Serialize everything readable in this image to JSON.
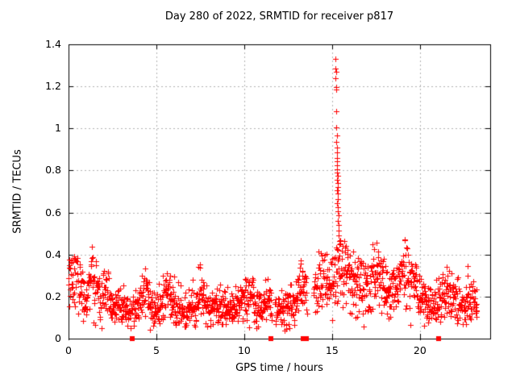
{
  "chart_data": {
    "type": "scatter",
    "title": "Day 280 of 2022, SRMTID for receiver p817",
    "xlabel": "GPS time / hours",
    "ylabel": "SRMTID / TECUs",
    "xlim": [
      0,
      24
    ],
    "ylim": [
      0,
      1.4
    ],
    "xticks": {
      "values": [
        0,
        5,
        10,
        15,
        20
      ],
      "labels": [
        "0",
        "5",
        "10",
        "15",
        "20"
      ]
    },
    "yticks": {
      "values": [
        0,
        0.2,
        0.4,
        0.6,
        0.8,
        1.0,
        1.2,
        1.4
      ],
      "labels": [
        "0",
        "0.2",
        "0.4",
        "0.6",
        "0.8",
        "1",
        "1.2",
        "1.4"
      ]
    },
    "grid": true,
    "grid_style": "dashed",
    "legend": false,
    "marker": "plus",
    "colors": {
      "series": "#ff0000",
      "grid": "#b4b4b4",
      "border": "#000000",
      "background": "#ffffff"
    },
    "main_series": {
      "name": "SRMTID",
      "description": "Dense scatter of ~1600 samples, values mostly 0.05-0.45 TECUs oscillating with ~1 h quasi-period",
      "t_range": [
        0,
        23.25
      ],
      "point_count": 1600,
      "seed": 280,
      "envelope_keyframes": [
        [
          0.0,
          0.24,
          0.36
        ],
        [
          0.4,
          0.26,
          0.4
        ],
        [
          0.9,
          0.16,
          0.3
        ],
        [
          1.3,
          0.27,
          0.44
        ],
        [
          1.8,
          0.15,
          0.32
        ],
        [
          2.1,
          0.2,
          0.38
        ],
        [
          2.5,
          0.11,
          0.22
        ],
        [
          2.9,
          0.16,
          0.3
        ],
        [
          3.3,
          0.11,
          0.22
        ],
        [
          3.8,
          0.12,
          0.26
        ],
        [
          4.4,
          0.19,
          0.38
        ],
        [
          4.8,
          0.11,
          0.22
        ],
        [
          5.2,
          0.13,
          0.28
        ],
        [
          5.6,
          0.2,
          0.46
        ],
        [
          6.0,
          0.14,
          0.3
        ],
        [
          6.5,
          0.11,
          0.24
        ],
        [
          7.0,
          0.14,
          0.3
        ],
        [
          7.5,
          0.17,
          0.36
        ],
        [
          8.0,
          0.12,
          0.23
        ],
        [
          8.5,
          0.14,
          0.27
        ],
        [
          9.0,
          0.12,
          0.25
        ],
        [
          9.5,
          0.14,
          0.28
        ],
        [
          10.1,
          0.17,
          0.34
        ],
        [
          10.5,
          0.17,
          0.3
        ],
        [
          10.9,
          0.12,
          0.24
        ],
        [
          11.3,
          0.15,
          0.3
        ],
        [
          11.8,
          0.12,
          0.24
        ],
        [
          12.2,
          0.12,
          0.24
        ],
        [
          12.6,
          0.15,
          0.3
        ],
        [
          13.0,
          0.19,
          0.34
        ],
        [
          13.35,
          0.23,
          0.37
        ],
        [
          13.8,
          0.18,
          0.28
        ],
        [
          14.1,
          0.24,
          0.45
        ],
        [
          14.45,
          0.26,
          0.52
        ],
        [
          14.75,
          0.21,
          0.38
        ],
        [
          15.05,
          0.23,
          0.4
        ],
        [
          15.4,
          0.3,
          0.5
        ],
        [
          15.75,
          0.27,
          0.47
        ],
        [
          16.05,
          0.24,
          0.4
        ],
        [
          16.35,
          0.27,
          0.48
        ],
        [
          16.7,
          0.21,
          0.38
        ],
        [
          17.1,
          0.24,
          0.42
        ],
        [
          17.55,
          0.28,
          0.55
        ],
        [
          17.95,
          0.21,
          0.38
        ],
        [
          18.4,
          0.19,
          0.33
        ],
        [
          18.8,
          0.22,
          0.4
        ],
        [
          19.15,
          0.27,
          0.5
        ],
        [
          19.5,
          0.24,
          0.44
        ],
        [
          19.9,
          0.18,
          0.33
        ],
        [
          20.3,
          0.15,
          0.27
        ],
        [
          20.7,
          0.13,
          0.25
        ],
        [
          21.1,
          0.15,
          0.3
        ],
        [
          21.55,
          0.21,
          0.44
        ],
        [
          21.9,
          0.16,
          0.3
        ],
        [
          22.3,
          0.14,
          0.3
        ],
        [
          22.65,
          0.15,
          0.38
        ],
        [
          23.0,
          0.17,
          0.3
        ],
        [
          23.25,
          0.15,
          0.26
        ]
      ],
      "gaps": [
        [
          11.55,
          11.73
        ],
        [
          13.57,
          13.95
        ]
      ]
    },
    "spike": {
      "description": "Large TID event near 15.2-15.45 h peaking at ~1.33 TECUs",
      "points": [
        [
          15.19,
          1.33
        ],
        [
          15.21,
          1.285
        ],
        [
          15.22,
          1.27
        ],
        [
          15.2,
          1.24
        ],
        [
          15.22,
          1.195
        ],
        [
          15.25,
          1.185
        ],
        [
          15.23,
          1.08
        ],
        [
          15.24,
          1.005
        ],
        [
          15.26,
          0.965
        ],
        [
          15.25,
          0.935
        ],
        [
          15.28,
          0.91
        ],
        [
          15.27,
          0.885
        ],
        [
          15.29,
          0.86
        ],
        [
          15.28,
          0.845
        ],
        [
          15.3,
          0.825
        ],
        [
          15.29,
          0.805
        ],
        [
          15.27,
          0.79
        ],
        [
          15.31,
          0.775
        ],
        [
          15.3,
          0.755
        ],
        [
          15.32,
          0.74
        ],
        [
          15.31,
          0.72
        ],
        [
          15.28,
          0.705
        ],
        [
          15.33,
          0.69
        ],
        [
          15.32,
          0.665
        ],
        [
          15.3,
          0.645
        ],
        [
          15.34,
          0.625
        ],
        [
          15.33,
          0.605
        ],
        [
          15.35,
          0.585
        ],
        [
          15.34,
          0.56
        ],
        [
          15.37,
          0.54
        ],
        [
          15.36,
          0.515
        ],
        [
          15.39,
          0.49
        ],
        [
          15.41,
          0.465
        ],
        [
          15.43,
          0.45
        ]
      ]
    },
    "axis_markers": {
      "shape": "filled-square",
      "color": "#ff0000",
      "y": 0,
      "x": [
        3.62,
        11.5,
        13.35,
        13.55,
        21.05
      ]
    }
  }
}
